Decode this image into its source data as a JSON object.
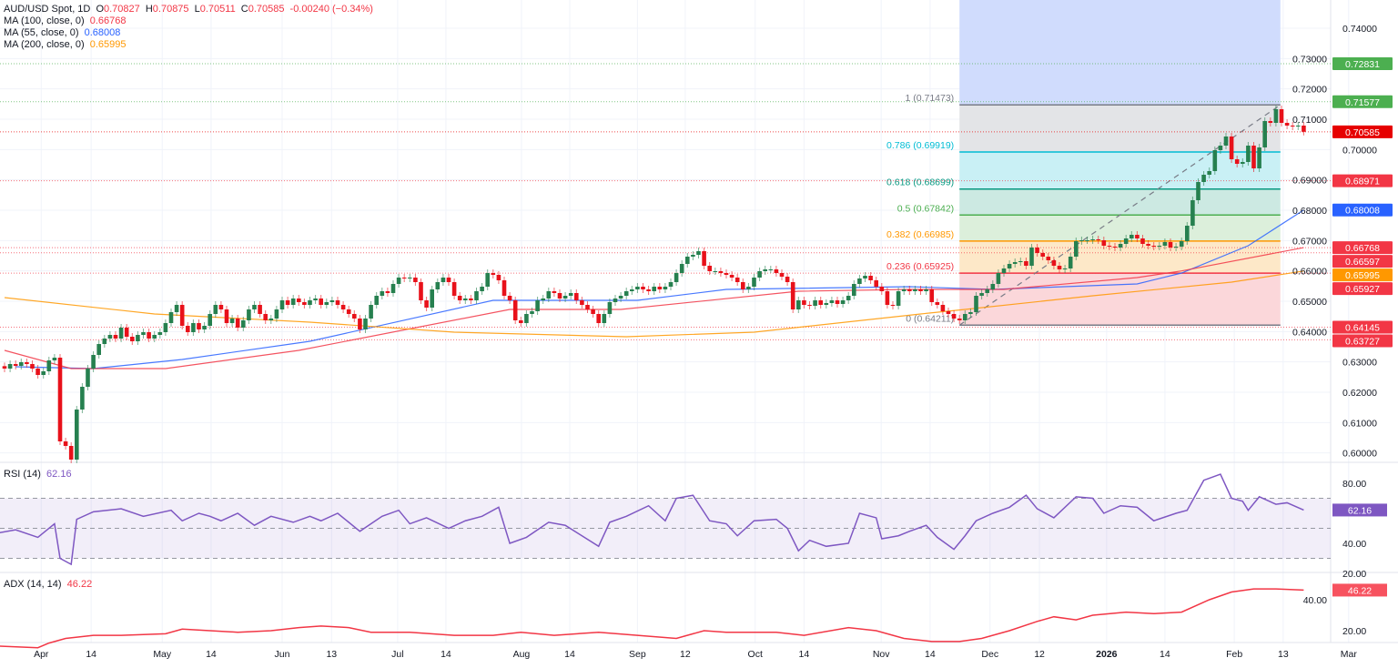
{
  "header": {
    "symbol": "AUD/USD Spot, 1D",
    "o_label": "O",
    "o": "0.70827",
    "h_label": "H",
    "h": "0.70875",
    "l_label": "L",
    "l": "0.70511",
    "c_label": "C",
    "c": "0.70585",
    "change": "-0.00240 (−0.34%)",
    "ma100_label": "MA (100, close, 0)",
    "ma100_value": "0.66768",
    "ma55_label": "MA (55, close, 0)",
    "ma55_value": "0.68008",
    "ma200_label": "MA (200, close, 0)",
    "ma200_value": "0.65995"
  },
  "rsi_legend": {
    "label": "RSI (14)",
    "value": "62.16"
  },
  "adx_legend": {
    "label": "ADX (14, 14)",
    "value": "46.22"
  },
  "colors": {
    "up": "#26804f",
    "down": "#e8111a",
    "ma55": "#2962ff",
    "ma100": "#f23645",
    "ma200": "#ff9800",
    "rsi": "#7e57c2",
    "adx": "#f23645",
    "level_green": "#4caf50",
    "level_red": "#f23645"
  },
  "chart_data": {
    "type": "candlestick",
    "title": "AUD/USD Spot, 1D",
    "price_axis_ticks": [
      "0.74000",
      "0.73000",
      "0.72000",
      "0.71000",
      "0.70000",
      "0.69000",
      "0.68000",
      "0.67000",
      "0.66000",
      "0.65000",
      "0.64000",
      "0.63000",
      "0.62000",
      "0.61000",
      "0.60000"
    ],
    "ylim": [
      0.5975,
      0.7493
    ],
    "time_axis": [
      {
        "label": "Apr",
        "bar": 6.6
      },
      {
        "label": "14",
        "bar": 15.6
      },
      {
        "label": "May",
        "bar": 28.4
      },
      {
        "label": "14",
        "bar": 37.2
      },
      {
        "label": "Jun",
        "bar": 50
      },
      {
        "label": "13",
        "bar": 58.9
      },
      {
        "label": "Jul",
        "bar": 70.8
      },
      {
        "label": "14",
        "bar": 79.5
      },
      {
        "label": "Aug",
        "bar": 93.1
      },
      {
        "label": "14",
        "bar": 101.8
      },
      {
        "label": "Sep",
        "bar": 114
      },
      {
        "label": "12",
        "bar": 122.6
      },
      {
        "label": "Oct",
        "bar": 135.2
      },
      {
        "label": "14",
        "bar": 144
      },
      {
        "label": "Nov",
        "bar": 157.9
      },
      {
        "label": "14",
        "bar": 166.7
      },
      {
        "label": "Dec",
        "bar": 177.5
      },
      {
        "label": "12",
        "bar": 186.4
      },
      {
        "label": "2026",
        "bar": 198.5,
        "bold": true
      },
      {
        "label": "14",
        "bar": 209
      },
      {
        "label": "Feb",
        "bar": 221.5
      },
      {
        "label": "13",
        "bar": 230.3
      },
      {
        "label": "Mar",
        "bar": 242.1
      }
    ],
    "closes": [
      0.6278,
      0.6293,
      0.6287,
      0.6299,
      0.6293,
      0.6278,
      0.6257,
      0.6269,
      0.6305,
      0.6314,
      0.6038,
      0.6023,
      0.5978,
      0.6143,
      0.6218,
      0.6278,
      0.6323,
      0.6359,
      0.6377,
      0.6389,
      0.6377,
      0.6413,
      0.6383,
      0.6368,
      0.6389,
      0.6398,
      0.6377,
      0.6389,
      0.6398,
      0.6428,
      0.6464,
      0.6488,
      0.6419,
      0.6398,
      0.6428,
      0.6407,
      0.6419,
      0.6458,
      0.6488,
      0.6473,
      0.6428,
      0.6443,
      0.6413,
      0.6437,
      0.6473,
      0.6488,
      0.6458,
      0.6437,
      0.6443,
      0.6473,
      0.6503,
      0.6488,
      0.6509,
      0.6497,
      0.6488,
      0.6503,
      0.6509,
      0.6488,
      0.6497,
      0.6503,
      0.6488,
      0.6473,
      0.6458,
      0.6443,
      0.6407,
      0.6443,
      0.6488,
      0.6518,
      0.6533,
      0.6527,
      0.6557,
      0.6578,
      0.6575,
      0.6578,
      0.6563,
      0.6503,
      0.6479,
      0.6539,
      0.6563,
      0.6578,
      0.6563,
      0.6518,
      0.6503,
      0.6509,
      0.6503,
      0.6533,
      0.6548,
      0.6593,
      0.6587,
      0.6569,
      0.6518,
      0.6503,
      0.6437,
      0.6428,
      0.6458,
      0.6467,
      0.6503,
      0.6509,
      0.6533,
      0.6527,
      0.6509,
      0.6518,
      0.6527,
      0.6503,
      0.6488,
      0.6473,
      0.6458,
      0.6428,
      0.6458,
      0.6497,
      0.6509,
      0.6518,
      0.6533,
      0.6539,
      0.6548,
      0.6539,
      0.6533,
      0.6548,
      0.6539,
      0.6548,
      0.6563,
      0.6593,
      0.6623,
      0.6647,
      0.6653,
      0.6665,
      0.6617,
      0.6599,
      0.6599,
      0.6593,
      0.6587,
      0.6578,
      0.6563,
      0.6539,
      0.6548,
      0.6578,
      0.6599,
      0.6605,
      0.6605,
      0.6593,
      0.6581,
      0.6563,
      0.6473,
      0.6503,
      0.6488,
      0.6485,
      0.6503,
      0.6488,
      0.6494,
      0.6503,
      0.6491,
      0.6503,
      0.6518,
      0.6557,
      0.6575,
      0.6584,
      0.6569,
      0.6548,
      0.6533,
      0.6488,
      0.6485,
      0.6533,
      0.6539,
      0.6533,
      0.6539,
      0.6533,
      0.6539,
      0.6497,
      0.6488,
      0.6467,
      0.6458,
      0.6443,
      0.6437,
      0.6458,
      0.6464,
      0.6518,
      0.6527,
      0.6539,
      0.6557,
      0.6593,
      0.6608,
      0.6623,
      0.6629,
      0.6632,
      0.6617,
      0.6677,
      0.6659,
      0.6647,
      0.6635,
      0.6617,
      0.6605,
      0.6608,
      0.6647,
      0.6698,
      0.6701,
      0.6701,
      0.6704,
      0.6701,
      0.6683,
      0.668,
      0.6677,
      0.6689,
      0.6707,
      0.6719,
      0.6707,
      0.6689,
      0.6683,
      0.668,
      0.6683,
      0.6695,
      0.6677,
      0.668,
      0.6698,
      0.6749,
      0.6833,
      0.6893,
      0.6917,
      0.6929,
      0.6998,
      0.7013,
      0.7043,
      0.6968,
      0.6953,
      0.6959,
      0.7013,
      0.6938,
      0.7007,
      0.7094,
      0.7088,
      0.7133,
      0.7088,
      0.7079,
      0.7076,
      0.7079,
      0.70585
    ],
    "moving_averages": [
      {
        "name": "MA (55, close, 0)",
        "color": "#2962ff",
        "points": [
          [
            2,
            0.6284
          ],
          [
            16,
            0.6278
          ],
          [
            32,
            0.6308
          ],
          [
            55,
            0.6368
          ],
          [
            88,
            0.6503
          ],
          [
            114,
            0.6503
          ],
          [
            130,
            0.6539
          ],
          [
            163,
            0.6548
          ],
          [
            178,
            0.6539
          ],
          [
            204,
            0.6557
          ],
          [
            212,
            0.6593
          ],
          [
            224,
            0.6683
          ],
          [
            234,
            0.68008
          ]
        ]
      },
      {
        "name": "MA (100, close, 0)",
        "color": "#f23645",
        "points": [
          [
            0,
            0.6338
          ],
          [
            12,
            0.6278
          ],
          [
            29,
            0.6278
          ],
          [
            53,
            0.6338
          ],
          [
            91,
            0.6473
          ],
          [
            111,
            0.6473
          ],
          [
            143,
            0.6533
          ],
          [
            163,
            0.6539
          ],
          [
            180,
            0.6539
          ],
          [
            204,
            0.6578
          ],
          [
            212,
            0.66
          ],
          [
            234,
            0.66768
          ]
        ]
      },
      {
        "name": "MA (200, close, 0)",
        "color": "#ff9800",
        "points": [
          [
            0,
            0.6512
          ],
          [
            27,
            0.6458
          ],
          [
            55,
            0.6431
          ],
          [
            81,
            0.6398
          ],
          [
            112,
            0.6383
          ],
          [
            135,
            0.6398
          ],
          [
            165,
            0.6458
          ],
          [
            173,
            0.6473
          ],
          [
            196,
            0.6518
          ],
          [
            221,
            0.6563
          ],
          [
            234,
            0.65995
          ]
        ]
      }
    ],
    "horizontal_levels": [
      {
        "price": 0.72831,
        "label": "0.72831",
        "color": "#4caf50"
      },
      {
        "price": 0.71577,
        "label": "0.71577",
        "color": "#4caf50"
      },
      {
        "price": 0.70585,
        "label": "0.70585",
        "color": "#e60000"
      },
      {
        "price": 0.68971,
        "label": "0.68971",
        "color": "#f23645"
      },
      {
        "price": 0.68008,
        "label": "0.68008",
        "color": "#2962ff",
        "noline": true
      },
      {
        "price": 0.66768,
        "label": "0.66768",
        "color": "#f23645"
      },
      {
        "price": 0.66597,
        "label": "0.66597",
        "color": "#f23645"
      },
      {
        "price": 0.65995,
        "label": "0.65995",
        "color": "#ff9800",
        "noline": true,
        "dark": true
      },
      {
        "price": 0.65927,
        "label": "0.65927",
        "color": "#f23645"
      },
      {
        "price": 0.64145,
        "label": "0.64145",
        "color": "#f23645"
      },
      {
        "price": 0.63727,
        "label": "0.63727",
        "color": "#f23645"
      }
    ],
    "fibonacci": {
      "start_bar": 172,
      "end_bar": 229.8,
      "levels": [
        {
          "ratio": "1",
          "price": 0.71473,
          "label": "1 (0.71473)",
          "color": "#787b86",
          "fill": "#e3e4e7"
        },
        {
          "ratio": "0.786",
          "price": 0.69919,
          "label": "0.786 (0.69919)",
          "color": "#00bcd4",
          "fill": "#c9f0f5"
        },
        {
          "ratio": "0.618",
          "price": 0.68699,
          "label": "0.618 (0.68699)",
          "color": "#089981",
          "fill": "#cce9e2"
        },
        {
          "ratio": "0.5",
          "price": 0.67842,
          "label": "0.5 (0.67842)",
          "color": "#4caf50",
          "fill": "#dcefdb"
        },
        {
          "ratio": "0.382",
          "price": 0.66985,
          "label": "0.382 (0.66985)",
          "color": "#ff9800",
          "fill": "#fde8c8"
        },
        {
          "ratio": "0.236",
          "price": 0.65925,
          "label": "0.236 (0.65925)",
          "color": "#f23645",
          "fill": "#fbd7da"
        },
        {
          "ratio": "0",
          "price": 0.64211,
          "label": "0 (0.64211)",
          "color": "#787b86"
        }
      ],
      "extension_fill": "#d0dcfd"
    },
    "rsi": {
      "name": "RSI (14)",
      "ticks": [
        "80.00",
        "40.00",
        "20.00"
      ],
      "bands": [
        70,
        50,
        30
      ],
      "last": "62.16",
      "points": [
        [
          -1,
          47
        ],
        [
          2,
          49
        ],
        [
          6,
          44
        ],
        [
          9,
          53
        ],
        [
          10,
          30
        ],
        [
          12,
          26
        ],
        [
          13,
          56
        ],
        [
          16,
          61
        ],
        [
          21,
          63
        ],
        [
          25,
          58
        ],
        [
          30,
          62
        ],
        [
          32,
          55
        ],
        [
          35,
          60
        ],
        [
          37,
          58
        ],
        [
          39,
          55
        ],
        [
          42,
          60
        ],
        [
          45,
          52
        ],
        [
          48,
          58
        ],
        [
          52,
          54
        ],
        [
          55,
          58
        ],
        [
          57,
          55
        ],
        [
          60,
          60
        ],
        [
          64,
          48
        ],
        [
          68,
          58
        ],
        [
          71,
          62
        ],
        [
          73,
          53
        ],
        [
          76,
          57
        ],
        [
          80,
          50
        ],
        [
          83,
          55
        ],
        [
          86,
          58
        ],
        [
          89,
          64
        ],
        [
          91,
          40
        ],
        [
          94,
          44
        ],
        [
          98,
          54
        ],
        [
          101,
          52
        ],
        [
          104,
          45
        ],
        [
          107,
          38
        ],
        [
          109,
          54
        ],
        [
          112,
          58
        ],
        [
          116,
          65
        ],
        [
          119,
          55
        ],
        [
          121,
          70
        ],
        [
          124,
          72
        ],
        [
          127,
          55
        ],
        [
          130,
          53
        ],
        [
          132,
          45
        ],
        [
          135,
          55
        ],
        [
          139,
          56
        ],
        [
          141,
          50
        ],
        [
          143,
          35
        ],
        [
          145,
          42
        ],
        [
          148,
          38
        ],
        [
          152,
          40
        ],
        [
          154,
          60
        ],
        [
          157,
          57
        ],
        [
          158,
          43
        ],
        [
          161,
          45
        ],
        [
          163,
          48
        ],
        [
          166,
          52
        ],
        [
          168,
          44
        ],
        [
          171,
          36
        ],
        [
          173,
          45
        ],
        [
          175,
          55
        ],
        [
          178,
          60
        ],
        [
          181,
          64
        ],
        [
          184,
          72
        ],
        [
          186,
          63
        ],
        [
          189,
          57
        ],
        [
          193,
          71
        ],
        [
          196,
          70
        ],
        [
          198,
          60
        ],
        [
          201,
          65
        ],
        [
          204,
          64
        ],
        [
          207,
          55
        ],
        [
          211,
          60
        ],
        [
          213,
          62
        ],
        [
          216,
          82
        ],
        [
          219,
          86
        ],
        [
          221,
          70
        ],
        [
          223,
          68
        ],
        [
          224,
          62
        ],
        [
          226,
          71
        ],
        [
          229,
          66
        ],
        [
          231,
          67
        ],
        [
          234,
          62.16
        ]
      ]
    },
    "adx": {
      "name": "ADX (14, 14)",
      "ticks": [
        "40.00",
        "20.00"
      ],
      "last": "46.22",
      "points": [
        [
          -1,
          10
        ],
        [
          6,
          9
        ],
        [
          8,
          12
        ],
        [
          11,
          15
        ],
        [
          16,
          17
        ],
        [
          21,
          17
        ],
        [
          29,
          18
        ],
        [
          32,
          21
        ],
        [
          37,
          20
        ],
        [
          42,
          19
        ],
        [
          48,
          20
        ],
        [
          53,
          22
        ],
        [
          57,
          23
        ],
        [
          62,
          22
        ],
        [
          66,
          19
        ],
        [
          73,
          19
        ],
        [
          81,
          17
        ],
        [
          88,
          17
        ],
        [
          93,
          19
        ],
        [
          99,
          17
        ],
        [
          107,
          19
        ],
        [
          114,
          17
        ],
        [
          121,
          15
        ],
        [
          126,
          20
        ],
        [
          130,
          19
        ],
        [
          139,
          19
        ],
        [
          144,
          17
        ],
        [
          152,
          22
        ],
        [
          157,
          20
        ],
        [
          162,
          15
        ],
        [
          167,
          13
        ],
        [
          172,
          13
        ],
        [
          176,
          15
        ],
        [
          181,
          20
        ],
        [
          186,
          26
        ],
        [
          189,
          29
        ],
        [
          193,
          27
        ],
        [
          196,
          30
        ],
        [
          202,
          32
        ],
        [
          207,
          31
        ],
        [
          212,
          32
        ],
        [
          217,
          40
        ],
        [
          221,
          45
        ],
        [
          225,
          47
        ],
        [
          229,
          47
        ],
        [
          234,
          46.22
        ]
      ]
    }
  }
}
